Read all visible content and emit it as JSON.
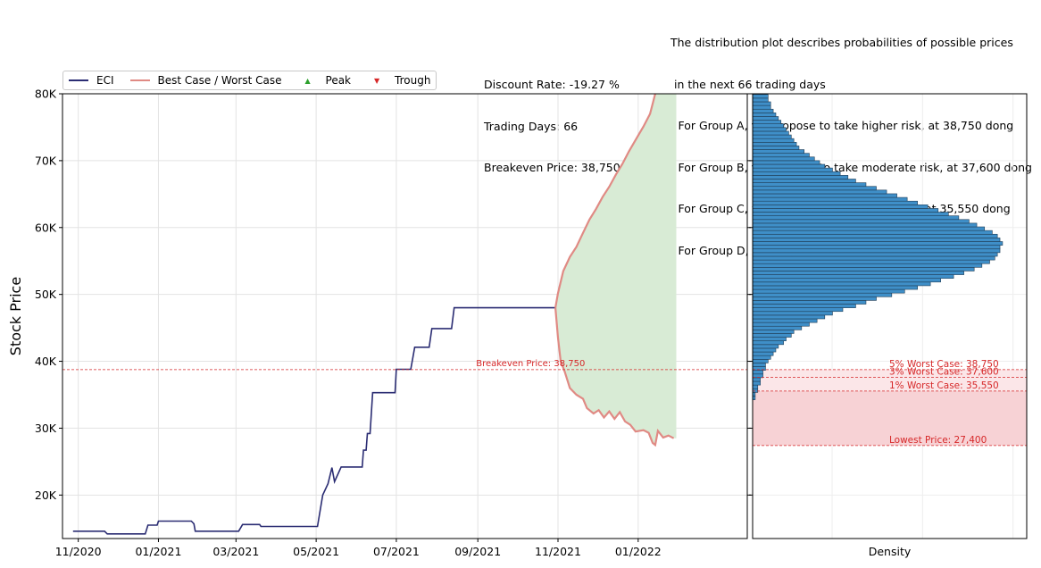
{
  "info_left": [
    "Discount Rate: -19.27 %",
    "Trading Days: 66",
    "Breakeven Price: 38,750"
  ],
  "info_right": [
    "The distribution plot describes probabilities of possible prices",
    " in the next 66 trading days",
    "- For Group A, we propose to take higher risk, at 38,750 dong",
    "- For Group B, we propose to take moderate risk, at 37,600 dong",
    "- For Group C, we propose to take minor risk, at 35,550 dong",
    "- For Group D, we propose to take no risk, at 27,400 dong"
  ],
  "legend": {
    "items": [
      {
        "label": "ECI",
        "kind": "line",
        "color": "#2b2d73"
      },
      {
        "label": "Best Case / Worst Case",
        "kind": "line",
        "color": "#e08a84"
      },
      {
        "label": "Peak",
        "kind": "marker",
        "glyph": "▲",
        "color": "#2ca02c"
      },
      {
        "label": "Trough",
        "kind": "marker",
        "glyph": "▼",
        "color": "#d62728"
      }
    ]
  },
  "colors": {
    "price_line": "#2b2d73",
    "scenario_line": "#e08a84",
    "scenario_fill": "#d8ebd5",
    "breakeven_line": "#d62728",
    "risk_fill": "#f7d2d5",
    "histogram_bar": "#3f8fc8",
    "histogram_edge": "#1f3c55"
  },
  "chart_data": {
    "type": "line",
    "ylabel": "Stock Price",
    "ylim": [
      13500,
      80000
    ],
    "xlim": [
      "2020-10-20",
      "2022-03-25"
    ],
    "x_ticks": [
      {
        "date": "2020-11-01",
        "label": "11/2020"
      },
      {
        "date": "2021-01-01",
        "label": "01/2021"
      },
      {
        "date": "2021-03-01",
        "label": "03/2021"
      },
      {
        "date": "2021-05-01",
        "label": "05/2021"
      },
      {
        "date": "2021-07-01",
        "label": "07/2021"
      },
      {
        "date": "2021-09-01",
        "label": "09/2021"
      },
      {
        "date": "2021-11-01",
        "label": "11/2021"
      },
      {
        "date": "2022-01-01",
        "label": "01/2022"
      }
    ],
    "y_ticks": [
      {
        "value": 20000,
        "label": "20K"
      },
      {
        "value": 30000,
        "label": "30K"
      },
      {
        "value": 40000,
        "label": "40K"
      },
      {
        "value": 50000,
        "label": "50K"
      },
      {
        "value": 60000,
        "label": "60K"
      },
      {
        "value": 70000,
        "label": "70K"
      },
      {
        "value": 80000,
        "label": "80K"
      }
    ],
    "grid": true,
    "legend_position": "top-left",
    "price_series": {
      "name": "ECI",
      "points": [
        [
          "2020-10-28",
          14600
        ],
        [
          "2020-11-21",
          14600
        ],
        [
          "2020-11-23",
          14200
        ],
        [
          "2020-12-22",
          14200
        ],
        [
          "2020-12-24",
          15500
        ],
        [
          "2020-12-31",
          15500
        ],
        [
          "2021-01-01",
          16100
        ],
        [
          "2021-01-26",
          16100
        ],
        [
          "2021-01-28",
          15700
        ],
        [
          "2021-01-29",
          14600
        ],
        [
          "2021-03-03",
          14600
        ],
        [
          "2021-03-06",
          15600
        ],
        [
          "2021-03-19",
          15600
        ],
        [
          "2021-03-20",
          15300
        ],
        [
          "2021-05-02",
          15300
        ],
        [
          "2021-05-06",
          20000
        ],
        [
          "2021-05-10",
          21700
        ],
        [
          "2021-05-13",
          24100
        ],
        [
          "2021-05-15",
          22000
        ],
        [
          "2021-05-20",
          24200
        ],
        [
          "2021-06-05",
          24200
        ],
        [
          "2021-06-06",
          26700
        ],
        [
          "2021-06-08",
          26700
        ],
        [
          "2021-06-09",
          29200
        ],
        [
          "2021-06-11",
          29200
        ],
        [
          "2021-06-13",
          35300
        ],
        [
          "2021-06-30",
          35300
        ],
        [
          "2021-07-01",
          38800
        ],
        [
          "2021-07-12",
          38800
        ],
        [
          "2021-07-15",
          42100
        ],
        [
          "2021-07-26",
          42100
        ],
        [
          "2021-07-28",
          44900
        ],
        [
          "2021-08-12",
          44900
        ],
        [
          "2021-08-14",
          48000
        ],
        [
          "2021-10-30",
          48000
        ]
      ]
    },
    "scenario_series": {
      "name": "Best Case / Worst Case",
      "start": [
        "2021-10-30",
        48000
      ],
      "best_case": [
        [
          "2021-11-01",
          50200
        ],
        [
          "2021-11-05",
          53500
        ],
        [
          "2021-11-10",
          55600
        ],
        [
          "2021-11-15",
          57100
        ],
        [
          "2021-11-20",
          59200
        ],
        [
          "2021-11-25",
          61200
        ],
        [
          "2021-11-30",
          62800
        ],
        [
          "2021-12-05",
          64600
        ],
        [
          "2021-12-10",
          66100
        ],
        [
          "2021-12-15",
          67900
        ],
        [
          "2021-12-20",
          69500
        ],
        [
          "2021-12-25",
          71400
        ],
        [
          "2021-12-30",
          73100
        ],
        [
          "2022-01-05",
          75100
        ],
        [
          "2022-01-10",
          77000
        ],
        [
          "2022-01-14",
          80000
        ]
      ],
      "worst_case": [
        [
          "2021-11-01",
          43500
        ],
        [
          "2021-11-03",
          40000
        ],
        [
          "2021-11-06",
          38500
        ],
        [
          "2021-11-10",
          36000
        ],
        [
          "2021-11-15",
          35000
        ],
        [
          "2021-11-20",
          34400
        ],
        [
          "2021-11-23",
          33000
        ],
        [
          "2021-11-28",
          32200
        ],
        [
          "2021-12-02",
          32700
        ],
        [
          "2021-12-06",
          31600
        ],
        [
          "2021-12-10",
          32500
        ],
        [
          "2021-12-14",
          31400
        ],
        [
          "2021-12-18",
          32400
        ],
        [
          "2021-12-22",
          31000
        ],
        [
          "2021-12-26",
          30500
        ],
        [
          "2021-12-30",
          29500
        ],
        [
          "2022-01-05",
          29700
        ],
        [
          "2022-01-09",
          29300
        ],
        [
          "2022-01-12",
          27800
        ],
        [
          "2022-01-14",
          27500
        ],
        [
          "2022-01-16",
          29600
        ],
        [
          "2022-01-20",
          28600
        ],
        [
          "2022-01-24",
          28900
        ],
        [
          "2022-01-28",
          28500
        ]
      ],
      "fill_until": "2022-01-30"
    },
    "breakeven": {
      "value": 38750,
      "label": "Breakeven Price: 38,750",
      "label_date": "2021-09-01"
    },
    "distribution": {
      "xlabel": "Density",
      "bin_start": 34250,
      "bin_width": 550,
      "density": [
        0.01,
        0.01,
        0.02,
        0.02,
        0.03,
        0.03,
        0.04,
        0.04,
        0.05,
        0.05,
        0.06,
        0.07,
        0.08,
        0.09,
        0.1,
        0.12,
        0.13,
        0.15,
        0.16,
        0.19,
        0.22,
        0.25,
        0.28,
        0.31,
        0.35,
        0.4,
        0.44,
        0.48,
        0.54,
        0.59,
        0.64,
        0.69,
        0.73,
        0.78,
        0.82,
        0.86,
        0.89,
        0.92,
        0.94,
        0.95,
        0.96,
        0.96,
        0.97,
        0.96,
        0.95,
        0.93,
        0.9,
        0.87,
        0.84,
        0.8,
        0.76,
        0.72,
        0.68,
        0.64,
        0.6,
        0.56,
        0.52,
        0.48,
        0.44,
        0.4,
        0.37,
        0.34,
        0.31,
        0.28,
        0.26,
        0.24,
        0.22,
        0.2,
        0.18,
        0.17,
        0.16,
        0.15,
        0.14,
        0.13,
        0.12,
        0.11,
        0.1,
        0.09,
        0.08,
        0.07,
        0.07,
        0.06,
        0.06,
        0.05
      ],
      "worst_cases": [
        {
          "label": "5% Worst Case: 38,750",
          "value": 38750
        },
        {
          "label": "3% Worst Case: 37,600",
          "value": 37600
        },
        {
          "label": "1% Worst Case: 35,550",
          "value": 35550
        },
        {
          "label": "Lowest Price: 27,400",
          "value": 27400
        }
      ]
    }
  }
}
